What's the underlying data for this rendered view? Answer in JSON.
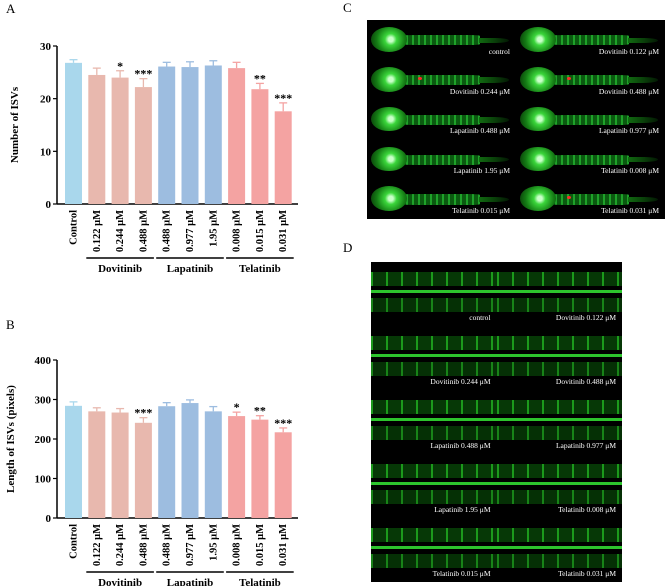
{
  "panels": {
    "A": "A",
    "B": "B",
    "C": "C",
    "D": "D"
  },
  "chart_data": [
    {
      "type": "bar",
      "panel": "A",
      "ylabel": "Number of ISVs",
      "ylim": [
        0,
        30
      ],
      "yticks": [
        0,
        10,
        20,
        30
      ],
      "categories": [
        "Control",
        "0.122 μM",
        "0.244 μM",
        "0.488 μM",
        "0.488 μM",
        "0.977 μM",
        "1.95 μM",
        "0.008 μM",
        "0.015 μM",
        "0.031 μM"
      ],
      "values": [
        26.8,
        24.5,
        24.0,
        22.2,
        26.1,
        26.0,
        26.3,
        25.8,
        21.8,
        17.6
      ],
      "errors": [
        0.6,
        1.3,
        1.3,
        1.6,
        0.8,
        1.0,
        0.9,
        1.1,
        1.1,
        1.6
      ],
      "significance": [
        "",
        "",
        "*",
        "***",
        "",
        "",
        "",
        "",
        "**",
        "***"
      ],
      "colors": [
        "#a9d7ec",
        "#e8b8ae",
        "#e8b8ae",
        "#e8b8ae",
        "#9dbde0",
        "#9dbde0",
        "#9dbde0",
        "#f4a3a2",
        "#f4a3a2",
        "#f4a3a2"
      ],
      "groups": [
        {
          "name": "Dovitinib",
          "start": 1,
          "end": 3
        },
        {
          "name": "Lapatinib",
          "start": 4,
          "end": 6
        },
        {
          "name": "Telatinib",
          "start": 7,
          "end": 9
        }
      ]
    },
    {
      "type": "bar",
      "panel": "B",
      "ylabel": "Length of ISVs  (pixels)",
      "ylim": [
        0,
        400
      ],
      "yticks": [
        0,
        100,
        200,
        300,
        400
      ],
      "categories": [
        "Control",
        "0.122 μM",
        "0.244 μM",
        "0.488 μM",
        "0.488 μM",
        "0.977 μM",
        "1.95 μM",
        "0.008 μM",
        "0.015 μM",
        "0.031 μM"
      ],
      "values": [
        284,
        270,
        267,
        241,
        283,
        291,
        270,
        258,
        249,
        217
      ],
      "errors": [
        10,
        9,
        10,
        13,
        9,
        8,
        12,
        10,
        10,
        11
      ],
      "significance": [
        "",
        "",
        "",
        "***",
        "",
        "",
        "",
        "*",
        "**",
        "***"
      ],
      "colors": [
        "#a9d7ec",
        "#e8b8ae",
        "#e8b8ae",
        "#e8b8ae",
        "#9dbde0",
        "#9dbde0",
        "#9dbde0",
        "#f4a3a2",
        "#f4a3a2",
        "#f4a3a2"
      ],
      "groups": [
        {
          "name": "Dovitinib",
          "start": 1,
          "end": 3
        },
        {
          "name": "Lapatinib",
          "start": 4,
          "end": 6
        },
        {
          "name": "Telatinib",
          "start": 7,
          "end": 9
        }
      ]
    }
  ],
  "imagesC": [
    "control",
    "Dovitinib 0.122 μM",
    "Dovitinib 0.244 μM",
    "Dovitinib 0.488 μM",
    "Lapatinib 0.488 μM",
    "Lapatinib 0.977 μM",
    "Lapatinib 1.95 μM",
    "Telatinib 0.008 μM",
    "Telatinib 0.015 μM",
    "Telatinib 0.031 μM"
  ],
  "imagesD": [
    "control",
    "Dovitinib 0.122 μM",
    "Dovitinib 0.244 μM",
    "Dovitinib 0.488 μM",
    "Lapatinib 0.488 μM",
    "Lapatinib 0.977 μM",
    "Lapatinib 1.95 μM",
    "Telatinib 0.008 μM",
    "Telatinib 0.015 μM",
    "Telatinib 0.031 μM"
  ]
}
